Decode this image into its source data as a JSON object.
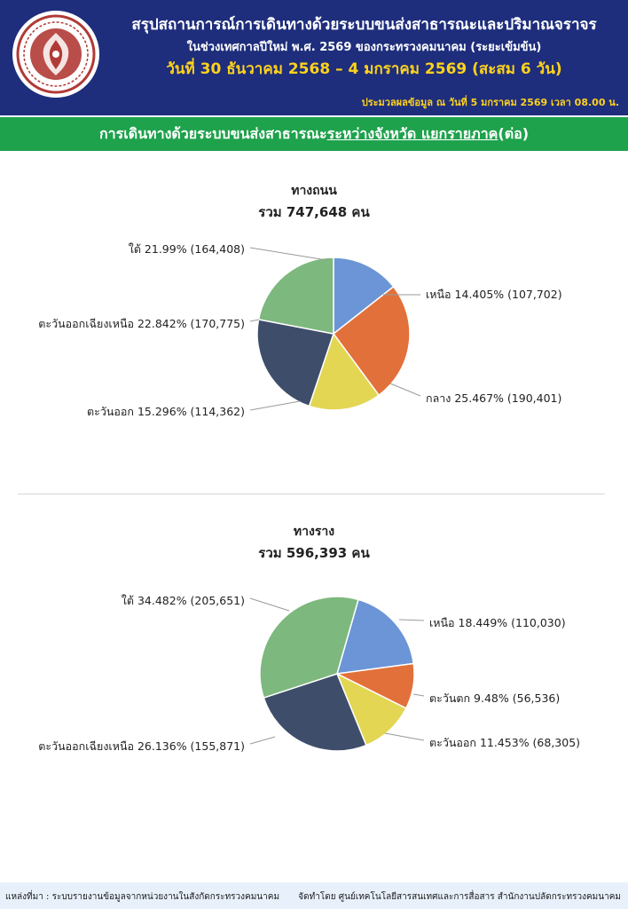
{
  "header": {
    "title": "สรุปสถานการณ์การเดินทางด้วยระบบขนส่งสาธารณะและปริมาณจราจร",
    "subtitle": "ในช่วงเทศกาลปีใหม่ พ.ศ. 2569 ของกระทรวงคมนาคม (ระยะเข้มข้น)",
    "date_range": "วันที่ 30 ธันวาคม 2568 – 4 มกราคม 2569 (สะสม 6 วัน)",
    "as_of": "ประมวลผลข้อมูล ณ วันที่ 5 มกราคม 2569 เวลา 08.00 น."
  },
  "section": {
    "prefix": "การเดินทางด้วยระบบขนส่งสาธารณะ",
    "underlined": "ระหว่างจังหวัด แยกรายภาค",
    "suffix": " (ต่อ)"
  },
  "chart_data": [
    {
      "type": "pie",
      "title": "ทางถนน",
      "total_label": "รวม 747,648 คน",
      "slices": [
        {
          "name": "เหนือ",
          "percent": 14.405,
          "value": 107702,
          "label": "เหนือ 14.405% (107,702)",
          "color": "#6b95d6"
        },
        {
          "name": "กลาง",
          "percent": 25.467,
          "value": 190401,
          "label": "กลาง 25.467% (190,401)",
          "color": "#e2703a"
        },
        {
          "name": "ตะวันออก",
          "percent": 15.296,
          "value": 114362,
          "label": "ตะวันออก 15.296% (114,362)",
          "color": "#e2d653"
        },
        {
          "name": "ตะวันออกเฉียงเหนือ",
          "percent": 22.842,
          "value": 170775,
          "label": "ตะวันออกเฉียงเหนือ 22.842% (170,775)",
          "color": "#3e4e6a"
        },
        {
          "name": "ใต้",
          "percent": 21.99,
          "value": 164408,
          "label": "ใต้ 21.99% (164,408)",
          "color": "#7db87e"
        }
      ]
    },
    {
      "type": "pie",
      "title": "ทางราง",
      "total_label": "รวม 596,393 คน",
      "slices": [
        {
          "name": "เหนือ",
          "percent": 18.449,
          "value": 110030,
          "label": "เหนือ 18.449% (110,030)",
          "color": "#6b95d6"
        },
        {
          "name": "ตะวันตก",
          "percent": 9.48,
          "value": 56536,
          "label": "ตะวันตก 9.48% (56,536)",
          "color": "#e2703a"
        },
        {
          "name": "ตะวันออก",
          "percent": 11.453,
          "value": 68305,
          "label": "ตะวันออก 11.453% (68,305)",
          "color": "#e2d653"
        },
        {
          "name": "ตะวันออกเฉียงเหนือ",
          "percent": 26.136,
          "value": 155871,
          "label": "ตะวันออกเฉียงเหนือ 26.136% (155,871)",
          "color": "#3e4e6a"
        },
        {
          "name": "ใต้",
          "percent": 34.482,
          "value": 205651,
          "label": "ใต้ 34.482% (205,651)",
          "color": "#7db87e"
        }
      ]
    }
  ],
  "footer": {
    "source": "แหล่งที่มา : ระบบรายงานข้อมูลจากหน่วยงานในสังกัดกระทรวงคมนาคม",
    "prepared_by": "จัดทำโดย ศูนย์เทคโนโลยีสารสนเทศและการสื่อสาร สำนักงานปลัดกระทรวงคมนาคม"
  },
  "logo": {
    "icon": "ministry-emblem-icon",
    "color": "#b03a36"
  }
}
